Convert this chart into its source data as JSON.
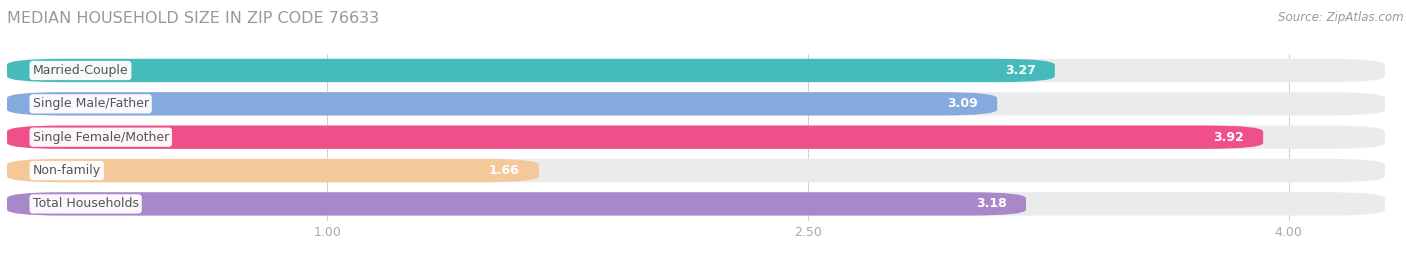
{
  "title": "MEDIAN HOUSEHOLD SIZE IN ZIP CODE 76633",
  "source": "Source: ZipAtlas.com",
  "categories": [
    "Married-Couple",
    "Single Male/Father",
    "Single Female/Mother",
    "Non-family",
    "Total Households"
  ],
  "values": [
    3.27,
    3.09,
    3.92,
    1.66,
    3.18
  ],
  "bar_colors": [
    "#45BCBB",
    "#85AADD",
    "#F0508A",
    "#F5C89A",
    "#A888C8"
  ],
  "xlim": [
    0,
    4.3
  ],
  "xticks": [
    1.0,
    2.5,
    4.0
  ],
  "bar_height": 0.7,
  "bar_gap": 0.3,
  "background_color": "#FFFFFF",
  "bar_bg_color": "#EBEBEB",
  "value_label_color": "#FFFFFF",
  "title_color": "#999999",
  "tick_color": "#AAAAAA",
  "source_color": "#999999",
  "label_text_color": "#555555",
  "rounding_size": 0.18
}
